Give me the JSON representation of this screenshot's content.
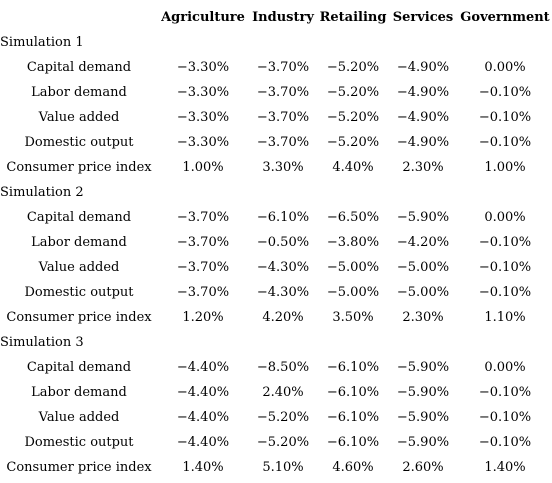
{
  "table": {
    "headers": [
      "",
      "Agriculture",
      "Industry",
      "Retailing",
      "Services",
      "Government"
    ],
    "simulations": [
      {
        "title": "Simulation 1",
        "rows": [
          {
            "label": "Capital demand",
            "values": [
              "−3.30%",
              "−3.70%",
              "−5.20%",
              "−4.90%",
              "0.00%"
            ]
          },
          {
            "label": "Labor demand",
            "values": [
              "−3.30%",
              "−3.70%",
              "−5.20%",
              "−4.90%",
              "−0.10%"
            ]
          },
          {
            "label": "Value added",
            "values": [
              "−3.30%",
              "−3.70%",
              "−5.20%",
              "−4.90%",
              "−0.10%"
            ]
          },
          {
            "label": "Domestic output",
            "values": [
              "−3.30%",
              "−3.70%",
              "−5.20%",
              "−4.90%",
              "−0.10%"
            ]
          },
          {
            "label": "Consumer price index",
            "values": [
              "1.00%",
              "3.30%",
              "4.40%",
              "2.30%",
              "1.00%"
            ]
          }
        ]
      },
      {
        "title": "Simulation 2",
        "rows": [
          {
            "label": "Capital demand",
            "values": [
              "−3.70%",
              "−6.10%",
              "−6.50%",
              "−5.90%",
              "0.00%"
            ]
          },
          {
            "label": "Labor demand",
            "values": [
              "−3.70%",
              "−0.50%",
              "−3.80%",
              "−4.20%",
              "−0.10%"
            ]
          },
          {
            "label": "Value added",
            "values": [
              "−3.70%",
              "−4.30%",
              "−5.00%",
              "−5.00%",
              "−0.10%"
            ]
          },
          {
            "label": "Domestic output",
            "values": [
              "−3.70%",
              "−4.30%",
              "−5.00%",
              "−5.00%",
              "−0.10%"
            ]
          },
          {
            "label": "Consumer price index",
            "values": [
              "1.20%",
              "4.20%",
              "3.50%",
              "2.30%",
              "1.10%"
            ]
          }
        ]
      },
      {
        "title": "Simulation 3",
        "rows": [
          {
            "label": "Capital demand",
            "values": [
              "−4.40%",
              "−8.50%",
              "−6.10%",
              "−5.90%",
              "0.00%"
            ]
          },
          {
            "label": "Labor demand",
            "values": [
              "−4.40%",
              "2.40%",
              "−6.10%",
              "−5.90%",
              "−0.10%"
            ]
          },
          {
            "label": "Value added",
            "values": [
              "−4.40%",
              "−5.20%",
              "−6.10%",
              "−5.90%",
              "−0.10%"
            ]
          },
          {
            "label": "Domestic output",
            "values": [
              "−4.40%",
              "−5.20%",
              "−6.10%",
              "−5.90%",
              "−0.10%"
            ]
          },
          {
            "label": "Consumer price index",
            "values": [
              "1.40%",
              "5.10%",
              "4.60%",
              "2.60%",
              "1.40%"
            ]
          }
        ]
      }
    ]
  }
}
